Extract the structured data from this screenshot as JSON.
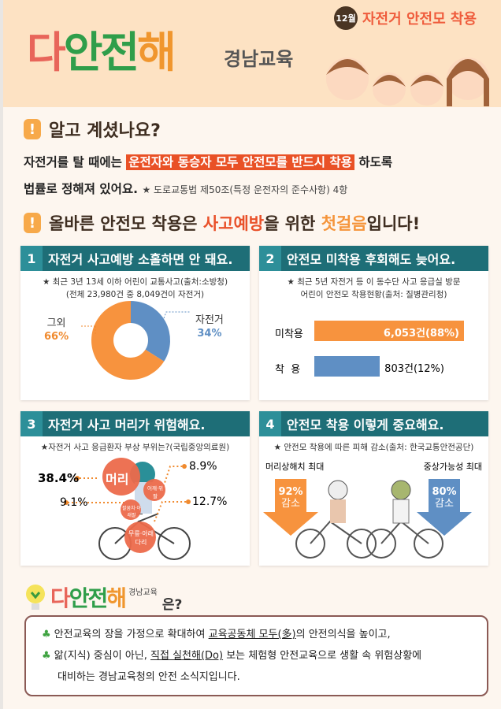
{
  "header": {
    "logo": [
      "다",
      "안",
      "전",
      "해"
    ],
    "logo_sub": "경남교육",
    "month_badge": "12월",
    "month_title": "자전거 안전모 착용"
  },
  "intro": {
    "title": "알고 계셨나요?",
    "line1_pre": "자전거를 탈 때에는",
    "line1_highlight": "운전자와 동승자 모두 안전모를 반드시 착용",
    "line1_post": "하도록",
    "line2": "법률로 정해져 있어요.",
    "law_note": "★ 도로교통법 제50조(특정 운전자의 준수사항) 4항"
  },
  "headline": {
    "pre": "올바른 안전모 착용은",
    "red": "사고예방",
    "mid": "을 위한",
    "orange": "첫걸음",
    "post": "입니다!"
  },
  "panels": [
    {
      "num": "1",
      "title": "자전거 사고예방 소홀하면 안 돼요.",
      "note1": "★ 최근 3년 13세 이하 어린이 교통사고(출처:소방청)",
      "note2": "(전체 23,980건 중 8,049건이 자전거)"
    },
    {
      "num": "2",
      "title": "안전모 미착용 후회해도 늦어요.",
      "note1": "★ 최근 5년 자전거 등 이 동수단 사고 응급실 방문",
      "note2": "어린이 안전모 착용현황(출처: 질병관리청)"
    },
    {
      "num": "3",
      "title": "자전거 사고 머리가 위험해요.",
      "note1": "★자전거 사고 응급환자 부상 부위는?(국립중앙의료원)"
    },
    {
      "num": "4",
      "title": "안전모 착용 이렇게 중요해요.",
      "note1": "★ 안전모 착용에 따른 피해 감소(출처: 한국교통안전공단)",
      "left_label": "머리상해치 최대",
      "left_value": "92%",
      "left_unit": "감소",
      "right_label": "중상가능성 최대",
      "right_value": "80%",
      "right_unit": "감소"
    }
  ],
  "chart_data": [
    {
      "type": "pie",
      "title": "최근 3년 13세 이하 어린이 교통사고",
      "slices": [
        {
          "label": "자전거",
          "value": 34,
          "display": "34%",
          "color": "#5f8fc4"
        },
        {
          "label": "그외",
          "value": 66,
          "display": "66%",
          "color": "#f7933e"
        }
      ]
    },
    {
      "type": "bar",
      "title": "어린이 안전모 착용현황",
      "categories": [
        "미착용",
        "착  용"
      ],
      "values": [
        6053,
        803
      ],
      "labels": [
        "6,053건(88%)",
        "803건(12%)"
      ],
      "colors": [
        "#f7933e",
        "#5f8fc4"
      ]
    },
    {
      "type": "table",
      "title": "자전거 사고 응급환자 부상 부위",
      "rows": [
        {
          "part": "머리",
          "value": "38.4%"
        },
        {
          "part": "어깨·위팔",
          "value": "8.9%"
        },
        {
          "part": "팔꿈치·아래팔",
          "value": "9.1%"
        },
        {
          "part": "무릎·아래다리",
          "value": "12.7%"
        }
      ]
    }
  ],
  "footer": {
    "logo": [
      "다",
      "안",
      "전",
      "해"
    ],
    "logo_sub": "경남교육",
    "suffix": "은?",
    "b1_pre": "안전교육의 장을 가정으로 확대하여",
    "b1_u": "교육공동체 모두(多)",
    "b1_post": "의 안전의식을 높이고,",
    "b2_pre": "앎(지식) 중심이 아닌,",
    "b2_u": "직접 실천해(Do)",
    "b2_post": "보는 체험형 안전교육으로 생활 속 위험상황에",
    "b3": "대비하는 경남교육청의 안전 소식지입니다."
  }
}
